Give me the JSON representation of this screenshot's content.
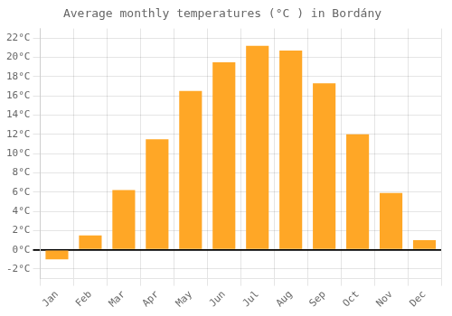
{
  "chart_data": {
    "type": "bar",
    "title": "Average monthly temperatures (°C ) in Bordány",
    "categories": [
      "Jan",
      "Feb",
      "Mar",
      "Apr",
      "May",
      "Jun",
      "Jul",
      "Aug",
      "Sep",
      "Oct",
      "Nov",
      "Dec"
    ],
    "values": [
      -1.0,
      1.5,
      6.2,
      11.5,
      16.5,
      19.5,
      21.2,
      20.7,
      17.3,
      12.0,
      5.9,
      1.0
    ],
    "color": "#FFA726",
    "ylim": [
      -3,
      23
    ],
    "yticks": [
      {
        "value": -2,
        "label": "-2°C"
      },
      {
        "value": 0,
        "label": "0°C"
      },
      {
        "value": 2,
        "label": "2°C"
      },
      {
        "value": 4,
        "label": "4°C"
      },
      {
        "value": 6,
        "label": "6°C"
      },
      {
        "value": 8,
        "label": "8°C"
      },
      {
        "value": 10,
        "label": "10°C"
      },
      {
        "value": 12,
        "label": "12°C"
      },
      {
        "value": 14,
        "label": "14°C"
      },
      {
        "value": 16,
        "label": "16°C"
      },
      {
        "value": 18,
        "label": "18°C"
      },
      {
        "value": 20,
        "label": "20°C"
      },
      {
        "value": 22,
        "label": "22°C"
      }
    ],
    "grid": true
  }
}
